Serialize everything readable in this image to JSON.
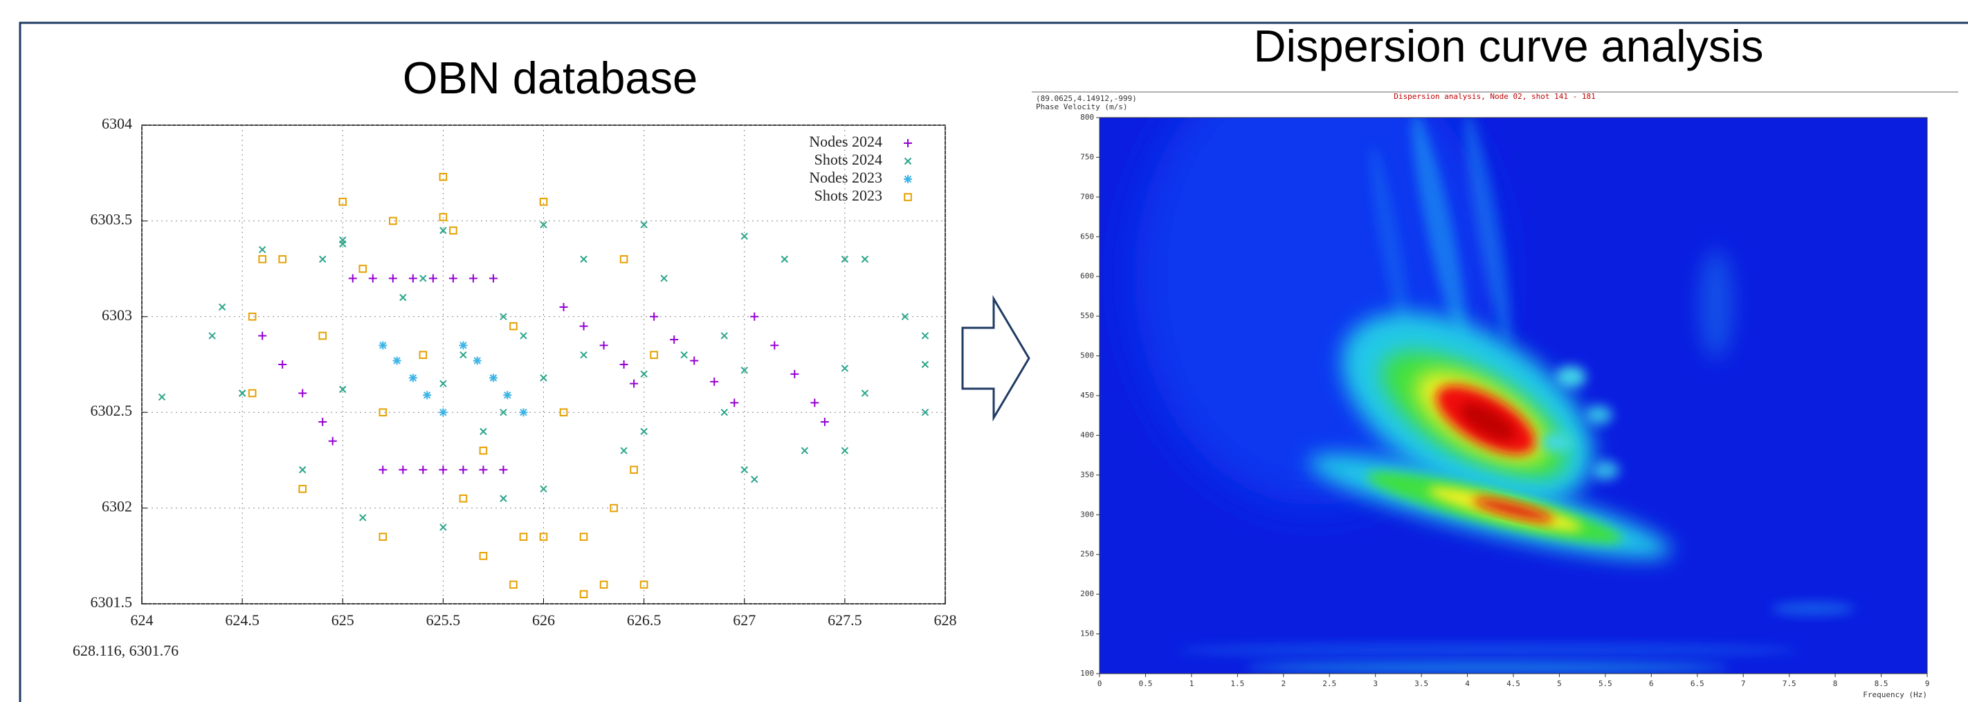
{
  "chart_data": [
    {
      "type": "scatter",
      "title": "OBN database",
      "annotation": "628.116, 6301.76",
      "xlim": [
        624,
        628
      ],
      "ylim": [
        6301.5,
        6304
      ],
      "xticks": [
        624,
        624.5,
        625,
        625.5,
        626,
        626.5,
        627,
        627.5,
        628
      ],
      "yticks": [
        6301.5,
        6302,
        6302.5,
        6303,
        6303.5,
        6304
      ],
      "grid": true,
      "legend": "top-right",
      "series": [
        {
          "name": "Nodes 2024",
          "color": "#9400d3",
          "marker": "plus",
          "x": [
            625.05,
            625.15,
            625.25,
            625.35,
            625.45,
            625.55,
            625.65,
            625.75,
            625.2,
            625.3,
            625.4,
            625.5,
            625.6,
            625.7,
            625.8,
            624.6,
            624.7,
            624.8,
            624.9,
            624.95,
            626.1,
            626.2,
            626.3,
            626.4,
            626.45,
            626.55,
            626.65,
            626.75,
            626.85,
            626.95,
            627.05,
            627.15,
            627.25,
            627.35,
            627.4
          ],
          "y": [
            6303.2,
            6303.2,
            6303.2,
            6303.2,
            6303.2,
            6303.2,
            6303.2,
            6303.2,
            6302.2,
            6302.2,
            6302.2,
            6302.2,
            6302.2,
            6302.2,
            6302.2,
            6302.9,
            6302.75,
            6302.6,
            6302.45,
            6302.35,
            6303.05,
            6302.95,
            6302.85,
            6302.75,
            6302.65,
            6303.0,
            6302.88,
            6302.77,
            6302.66,
            6302.55,
            6303.0,
            6302.85,
            6302.7,
            6302.55,
            6302.45
          ]
        },
        {
          "name": "Shots 2024",
          "color": "#2aa58a",
          "marker": "cross",
          "x": [
            624.1,
            624.5,
            625,
            625.5,
            626,
            626.5,
            627,
            627.5,
            627.9,
            625,
            625.5,
            626,
            626.5,
            627,
            627.5,
            627.9,
            627.9,
            627.5,
            627,
            626.5,
            626.2,
            625.8,
            625.3,
            624.9,
            624.4,
            624.6,
            625,
            625.4,
            625.6,
            625.7,
            625.8,
            625.5,
            625.1,
            624.8,
            624.5,
            624.35,
            626.9,
            627.2,
            627.6,
            627.8,
            627.6,
            627.3,
            627.05,
            626.9,
            625.9,
            626.2,
            626.6,
            626.7,
            626.4,
            626.0,
            625.8
          ],
          "y": [
            6302.58,
            6302.6,
            6302.62,
            6302.65,
            6302.68,
            6302.7,
            6302.72,
            6302.73,
            6302.75,
            6303.4,
            6303.45,
            6303.48,
            6303.48,
            6303.42,
            6303.3,
            6302.9,
            6302.5,
            6302.3,
            6302.2,
            6302.4,
            6302.8,
            6303.0,
            6303.1,
            6303.3,
            6303.05,
            6303.35,
            6303.38,
            6303.2,
            6302.8,
            6302.4,
            6302.05,
            6301.9,
            6301.95,
            6302.2,
            6302.6,
            6302.9,
            6302.9,
            6303.3,
            6303.3,
            6303.0,
            6302.6,
            6302.3,
            6302.15,
            6302.5,
            6302.9,
            6303.3,
            6303.2,
            6302.8,
            6302.3,
            6302.1,
            6302.5
          ]
        },
        {
          "name": "Nodes 2023",
          "color": "#3cb4e6",
          "marker": "star",
          "x": [
            625.2,
            625.27,
            625.35,
            625.42,
            625.5,
            625.6,
            625.67,
            625.75,
            625.82,
            625.9
          ],
          "y": [
            6302.85,
            6302.77,
            6302.68,
            6302.59,
            6302.5,
            6302.85,
            6302.77,
            6302.68,
            6302.59,
            6302.5
          ]
        },
        {
          "name": "Shots 2023",
          "color": "#e6a000",
          "marker": "square",
          "x": [
            624.6,
            625,
            625.5,
            626,
            626.4,
            626.55,
            626.45,
            626.2,
            625.7,
            625.2,
            624.8,
            624.55,
            624.55,
            625.1,
            625.4,
            625.7,
            626,
            626.3,
            625.55,
            625.85,
            626.1,
            626.35,
            626.5,
            624.7,
            624.9,
            625.2,
            625.6,
            625.9,
            625.85,
            626.2,
            625.25,
            625.5
          ],
          "y": [
            6303.3,
            6303.6,
            6303.73,
            6303.6,
            6303.3,
            6302.8,
            6302.2,
            6301.85,
            6301.75,
            6301.85,
            6302.1,
            6302.6,
            6303.0,
            6303.25,
            6302.8,
            6302.3,
            6301.85,
            6301.6,
            6303.45,
            6302.95,
            6302.5,
            6302.0,
            6301.6,
            6303.3,
            6302.9,
            6302.5,
            6302.05,
            6301.85,
            6301.6,
            6301.55,
            6303.5,
            6303.52
          ]
        }
      ]
    },
    {
      "type": "heatmap",
      "title": "Dispersion curve analysis",
      "subtitle": "Dispersion analysis, Node 02, shot 141 - 181",
      "annotation": "(89.0625,4.14912,-999)",
      "xlabel": "Frequency (Hz)",
      "ylabel": "Phase Velocity (m/s)",
      "xlim": [
        0,
        9
      ],
      "ylim": [
        100,
        800
      ],
      "xticks": [
        0,
        0.5,
        1,
        1.5,
        2,
        2.5,
        3,
        3.5,
        4,
        4.5,
        5,
        5.5,
        6,
        6.5,
        7,
        7.5,
        8,
        8.5,
        9
      ],
      "yticks": [
        100,
        150,
        200,
        250,
        300,
        350,
        400,
        450,
        500,
        550,
        600,
        650,
        700,
        750,
        800
      ]
    }
  ]
}
